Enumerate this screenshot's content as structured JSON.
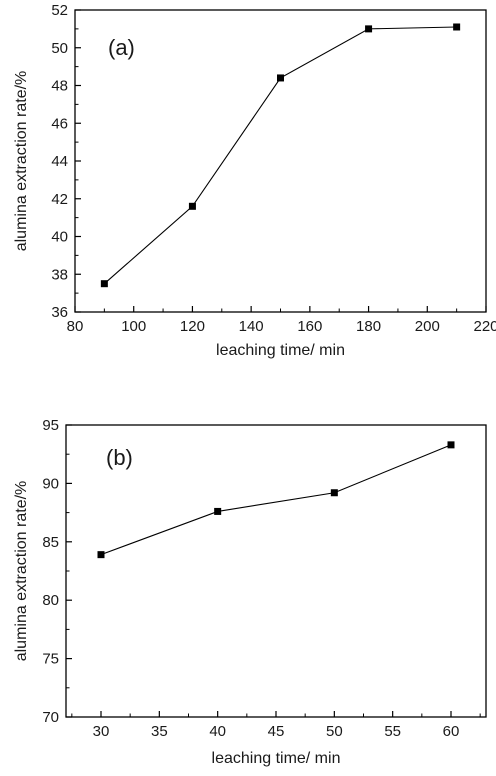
{
  "chart_data": [
    {
      "type": "line",
      "panel_label": "(a)",
      "xlabel": "leaching time/ min",
      "ylabel": "alumina extraction rate/%",
      "xlim": [
        80,
        220
      ],
      "ylim": [
        36,
        52
      ],
      "xticks": [
        80,
        100,
        120,
        140,
        160,
        180,
        200,
        220
      ],
      "yticks": [
        36,
        38,
        40,
        42,
        44,
        46,
        48,
        50,
        52
      ],
      "x": [
        90,
        120,
        150,
        180,
        210
      ],
      "series": [
        {
          "values": [
            37.5,
            41.6,
            48.4,
            51.0,
            51.1
          ]
        }
      ],
      "marker": "square",
      "color": "#000000",
      "grid": false
    },
    {
      "type": "line",
      "panel_label": "(b)",
      "xlabel": "leaching time/ min",
      "ylabel": "alumina extraction rate/%",
      "xlim": [
        27,
        63
      ],
      "ylim": [
        70,
        95
      ],
      "xticks": [
        30,
        35,
        40,
        45,
        50,
        55,
        60
      ],
      "yticks": [
        70,
        75,
        80,
        85,
        90,
        95
      ],
      "x": [
        30,
        40,
        50,
        60
      ],
      "series": [
        {
          "values": [
            83.9,
            87.6,
            89.2,
            93.3
          ]
        }
      ],
      "marker": "square",
      "color": "#000000",
      "grid": false
    }
  ]
}
